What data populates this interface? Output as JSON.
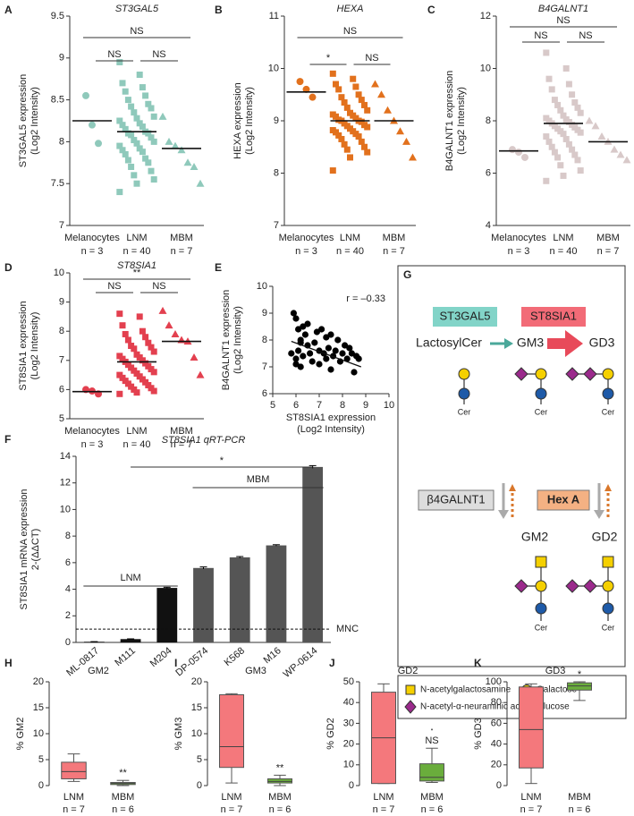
{
  "chart_data": [
    {
      "type": "strip",
      "panel": "A",
      "title": "ST3GAL5",
      "ylabel": [
        "ST3GAL5 expression",
        "(Log2 Intensity)"
      ],
      "categories": [
        "Melanocytes",
        "LNM",
        "MBM"
      ],
      "n_labels": [
        "n = 3",
        "n = 40",
        "n = 7"
      ],
      "groups": [
        {
          "values": [
            8.55,
            8.2,
            7.98
          ],
          "mean": 8.25
        },
        {
          "values": [
            8.95,
            8.8,
            8.7,
            8.65,
            8.6,
            8.55,
            8.5,
            8.45,
            8.42,
            8.4,
            8.35,
            8.3,
            8.28,
            8.25,
            8.22,
            8.2,
            8.18,
            8.15,
            8.12,
            8.1,
            8.1,
            8.08,
            8.05,
            8.02,
            8.0,
            7.98,
            7.95,
            7.92,
            7.9,
            7.88,
            7.85,
            7.8,
            7.78,
            7.75,
            7.7,
            7.65,
            7.6,
            7.55,
            7.5,
            7.4
          ],
          "mean": 8.12
        },
        {
          "values": [
            8.3,
            8.0,
            7.95,
            7.9,
            7.75,
            7.7,
            7.5
          ],
          "mean": 7.92
        }
      ],
      "markers": [
        "circle",
        "square",
        "triangle"
      ],
      "color": "#8fc9bb",
      "ylim": [
        7,
        9.5
      ],
      "yticks": [
        7,
        7.5,
        8,
        8.5,
        9,
        9.5
      ],
      "brackets": [
        {
          "from": "Melanocytes",
          "to": "MBM",
          "label": "NS"
        },
        {
          "from": "Melanocytes",
          "to": "LNM",
          "label": "NS"
        },
        {
          "from": "LNM",
          "to": "MBM",
          "label": "NS"
        }
      ]
    },
    {
      "type": "strip",
      "panel": "B",
      "title": "HEXA",
      "ylabel": [
        "HEXA expression",
        "(Log2 Intensity)"
      ],
      "categories": [
        "Melanocytes",
        "LNM",
        "MBM"
      ],
      "n_labels": [
        "n = 3",
        "n = 40",
        "n = 7"
      ],
      "groups": [
        {
          "values": [
            9.75,
            9.6,
            9.45
          ],
          "mean": 9.55
        },
        {
          "values": [
            9.9,
            9.8,
            9.7,
            9.65,
            9.6,
            9.5,
            9.45,
            9.4,
            9.35,
            9.3,
            9.25,
            9.2,
            9.15,
            9.12,
            9.1,
            9.08,
            9.05,
            9.02,
            9.0,
            9.0,
            8.98,
            8.95,
            8.92,
            8.9,
            8.88,
            8.85,
            8.82,
            8.8,
            8.78,
            8.75,
            8.72,
            8.7,
            8.65,
            8.6,
            8.55,
            8.5,
            8.45,
            8.4,
            8.3,
            8.05
          ],
          "mean": 9.0
        },
        {
          "values": [
            9.7,
            9.5,
            9.2,
            9.0,
            8.8,
            8.6,
            8.3
          ],
          "mean": 9.0
        }
      ],
      "markers": [
        "circle",
        "square",
        "triangle"
      ],
      "color": "#e2711d",
      "ylim": [
        7,
        11
      ],
      "yticks": [
        7,
        8,
        9,
        10,
        11
      ],
      "brackets": [
        {
          "from": "Melanocytes",
          "to": "MBM",
          "label": "NS"
        },
        {
          "from": "Melanocytes",
          "to": "LNM",
          "label": "*"
        },
        {
          "from": "LNM",
          "to": "MBM",
          "label": "NS"
        }
      ]
    },
    {
      "type": "strip",
      "panel": "C",
      "title": "B4GALNT1",
      "ylabel": [
        "B4GALNT1 expression",
        "(Log2 Intensity)"
      ],
      "categories": [
        "Melanocytes",
        "LNM",
        "MBM"
      ],
      "n_labels": [
        "n = 3",
        "n = 40",
        "n = 7"
      ],
      "groups": [
        {
          "values": [
            6.9,
            6.8,
            6.6
          ],
          "mean": 6.85
        },
        {
          "values": [
            10.6,
            10.0,
            9.6,
            9.4,
            9.2,
            9.0,
            8.8,
            8.7,
            8.6,
            8.5,
            8.4,
            8.3,
            8.2,
            8.1,
            8.05,
            8.0,
            7.95,
            7.9,
            7.85,
            7.8,
            7.75,
            7.7,
            7.65,
            7.6,
            7.55,
            7.5,
            7.4,
            7.3,
            7.2,
            7.1,
            7.0,
            6.9,
            6.8,
            6.7,
            6.6,
            6.5,
            6.3,
            6.1,
            5.9,
            5.7
          ],
          "mean": 7.9
        },
        {
          "values": [
            8.0,
            7.8,
            7.4,
            7.2,
            6.9,
            6.7,
            6.5
          ],
          "mean": 7.2
        }
      ],
      "markers": [
        "circle",
        "square",
        "triangle"
      ],
      "color": "#d8c9c9",
      "ylim": [
        4,
        12
      ],
      "yticks": [
        4,
        6,
        8,
        10,
        12
      ],
      "brackets": [
        {
          "from": "Melanocytes",
          "to": "MBM",
          "label": "NS"
        },
        {
          "from": "Melanocytes",
          "to": "LNM",
          "label": "NS"
        },
        {
          "from": "LNM",
          "to": "MBM",
          "label": "NS"
        }
      ]
    },
    {
      "type": "strip",
      "panel": "D",
      "title": "ST8SIA1",
      "ylabel": [
        "ST8SIA1 expression",
        "(Log2 Intensity)"
      ],
      "categories": [
        "Melanocytes",
        "LNM",
        "MBM"
      ],
      "n_labels": [
        "n = 3",
        "n = 40",
        "n = 7"
      ],
      "groups": [
        {
          "values": [
            6.0,
            5.95,
            5.85
          ],
          "mean": 5.93
        },
        {
          "values": [
            8.6,
            8.5,
            8.2,
            8.0,
            7.9,
            7.8,
            7.7,
            7.6,
            7.5,
            7.45,
            7.4,
            7.3,
            7.2,
            7.15,
            7.1,
            7.05,
            7.0,
            6.95,
            6.9,
            6.85,
            6.8,
            6.75,
            6.7,
            6.65,
            6.6,
            6.55,
            6.5,
            6.45,
            6.4,
            6.35,
            6.3,
            6.25,
            6.2,
            6.15,
            6.1,
            6.05,
            6.0,
            5.95,
            5.9,
            5.85
          ],
          "mean": 6.95
        },
        {
          "values": [
            8.7,
            8.2,
            7.9,
            7.7,
            7.65,
            7.1,
            6.5
          ],
          "mean": 7.65
        }
      ],
      "markers": [
        "circle",
        "square",
        "triangle"
      ],
      "color": "#e3404f",
      "ylim": [
        5,
        10
      ],
      "yticks": [
        5,
        6,
        7,
        8,
        9,
        10
      ],
      "brackets": [
        {
          "from": "Melanocytes",
          "to": "MBM",
          "label": "**"
        },
        {
          "from": "Melanocytes",
          "to": "LNM",
          "label": "NS"
        },
        {
          "from": "LNM",
          "to": "MBM",
          "label": "NS"
        }
      ]
    },
    {
      "type": "scatter",
      "panel": "E",
      "ylabel": [
        "B4GALNT1 expression",
        "(Log2 Intensity)"
      ],
      "xlabel": [
        "ST8SIA1 expression",
        "(Log2 Intensity)"
      ],
      "x": [
        5.8,
        5.9,
        6.0,
        6.0,
        6.1,
        6.1,
        6.2,
        6.2,
        6.3,
        6.3,
        6.4,
        6.5,
        6.5,
        6.6,
        6.7,
        6.8,
        6.9,
        7.0,
        7.0,
        7.1,
        7.2,
        7.3,
        7.3,
        7.4,
        7.5,
        7.6,
        7.7,
        7.8,
        7.9,
        8.0,
        8.1,
        8.2,
        8.3,
        8.4,
        8.5,
        8.6,
        8.7,
        6.0,
        6.2,
        7.5
      ],
      "y": [
        7.5,
        9.0,
        8.8,
        7.3,
        8.4,
        7.6,
        7.9,
        7.0,
        8.5,
        7.4,
        8.2,
        7.8,
        8.6,
        7.5,
        7.2,
        7.9,
        8.3,
        7.1,
        7.6,
        8.4,
        7.5,
        8.1,
        7.3,
        7.7,
        8.2,
        7.4,
        7.6,
        8.0,
        7.2,
        7.5,
        7.8,
        7.3,
        7.7,
        7.5,
        6.8,
        7.4,
        7.3,
        7.1,
        8.0,
        6.9
      ],
      "color": "#000000",
      "xlim": [
        5,
        10
      ],
      "xticks": [
        5,
        6,
        7,
        8,
        9,
        10
      ],
      "ylim": [
        6,
        10
      ],
      "yticks": [
        6,
        7,
        8,
        9,
        10
      ],
      "annotation": "r = –0.33",
      "trend": {
        "x": [
          5.8,
          8.8
        ],
        "y": [
          7.95,
          7.0
        ]
      }
    },
    {
      "type": "bar",
      "panel": "F",
      "title": "ST8SIA1 qRT-PCR",
      "ylabel": [
        "ST8SIA1 mRNA expression",
        "2-(ΔΔCT)"
      ],
      "categories": [
        "ML-0817",
        "M111",
        "M204",
        "DP-0574",
        "K568",
        "M16",
        "WP-0614"
      ],
      "values": [
        0.05,
        0.25,
        4.1,
        5.6,
        6.4,
        7.3,
        13.2
      ],
      "errors": [
        0.01,
        0.02,
        0.05,
        0.08,
        0.06,
        0.05,
        0.1
      ],
      "colors": [
        "#111111",
        "#111111",
        "#111111",
        "#555555",
        "#555555",
        "#555555",
        "#555555"
      ],
      "ylim": [
        0,
        14
      ],
      "yticks": [
        0,
        2,
        4,
        6,
        8,
        10,
        12,
        14
      ],
      "refline": {
        "value": 1,
        "label": "MNC"
      },
      "groups": [
        {
          "label": "LNM",
          "from": "ML-0817",
          "to": "M204"
        },
        {
          "label": "MBM",
          "from": "DP-0574",
          "to": "WP-0614"
        }
      ],
      "significance": {
        "label": "*",
        "from": "M111",
        "to": "WP-0614"
      }
    },
    {
      "type": "box",
      "panel": "H",
      "title": "GM2",
      "ylabel": "% GM2",
      "categories": [
        "LNM",
        "MBM"
      ],
      "n_labels": [
        "n = 7",
        "n = 6"
      ],
      "boxes": [
        {
          "min": 0.8,
          "q1": 1.3,
          "median": 2.7,
          "q3": 4.5,
          "max": 6.1
        },
        {
          "min": 0,
          "q1": 0.2,
          "median": 0.4,
          "q3": 0.6,
          "max": 1.0
        }
      ],
      "colors": [
        "#f4787c",
        "#6aad3c"
      ],
      "ylim": [
        0,
        20
      ],
      "yticks": [
        0,
        5,
        10,
        15,
        20
      ],
      "annotations": [
        {
          "at": "MBM",
          "label": "**"
        }
      ]
    },
    {
      "type": "box",
      "panel": "I",
      "title": "GM3",
      "ylabel": "% GM3",
      "categories": [
        "LNM",
        "MBM"
      ],
      "n_labels": [
        "n = 7",
        "n = 6"
      ],
      "boxes": [
        {
          "min": 0.5,
          "q1": 3.5,
          "median": 7.5,
          "q3": 17.5,
          "max": 17.7
        },
        {
          "min": 0,
          "q1": 0.5,
          "median": 0.8,
          "q3": 1.3,
          "max": 2.0
        }
      ],
      "colors": [
        "#f4787c",
        "#6aad3c"
      ],
      "ylim": [
        0,
        20
      ],
      "yticks": [
        0,
        5,
        10,
        15,
        20
      ],
      "annotations": [
        {
          "at": "MBM",
          "label": "**"
        }
      ]
    },
    {
      "type": "box",
      "panel": "J",
      "title": "GD2",
      "ylabel": "% GD2",
      "categories": [
        "LNM",
        "MBM"
      ],
      "n_labels": [
        "n = 7",
        "n = 6"
      ],
      "boxes": [
        {
          "min": 1,
          "q1": 1,
          "median": 23,
          "q3": 45,
          "max": 49
        },
        {
          "min": 1.5,
          "q1": 2.2,
          "median": 4,
          "q3": 10.5,
          "max": 18,
          "outliers": [
            27
          ]
        }
      ],
      "colors": [
        "#f4787c",
        "#6aad3c"
      ],
      "ylim": [
        0,
        50
      ],
      "yticks": [
        0,
        10,
        20,
        30,
        40,
        50
      ],
      "annotations": [
        {
          "at": "MBM",
          "label": "NS"
        }
      ]
    },
    {
      "type": "box",
      "panel": "K",
      "title": "GD3",
      "ylabel": "% GD3",
      "categories": [
        "LNM",
        "MBM"
      ],
      "n_labels": [
        "n = 7",
        "n = 6"
      ],
      "boxes": [
        {
          "min": 2,
          "q1": 17,
          "median": 54,
          "q3": 95,
          "max": 98
        },
        {
          "min": 82,
          "q1": 92,
          "median": 96,
          "q3": 99,
          "max": 100
        }
      ],
      "colors": [
        "#f4787c",
        "#6aad3c"
      ],
      "ylim": [
        0,
        100
      ],
      "yticks": [
        0,
        20,
        40,
        60,
        80,
        100
      ],
      "annotations": [
        {
          "at": "MBM",
          "label": "*"
        }
      ]
    }
  ],
  "diagram": {
    "panel": "G",
    "enzymes": [
      "ST3GAL5",
      "ST8SIA1",
      "β4GALNT1",
      "Hex A"
    ],
    "compounds": [
      "LactosylCer",
      "GM3",
      "GD3",
      "GM2",
      "GD2"
    ],
    "ceramide_labels": [
      "Cer",
      "Cer",
      "Cer",
      "Cer",
      "Cer"
    ],
    "legend": [
      "N-acetylgalactosamine",
      "Galactose",
      "N-acetyl-α-neuraminic acid",
      "Glucose"
    ]
  }
}
